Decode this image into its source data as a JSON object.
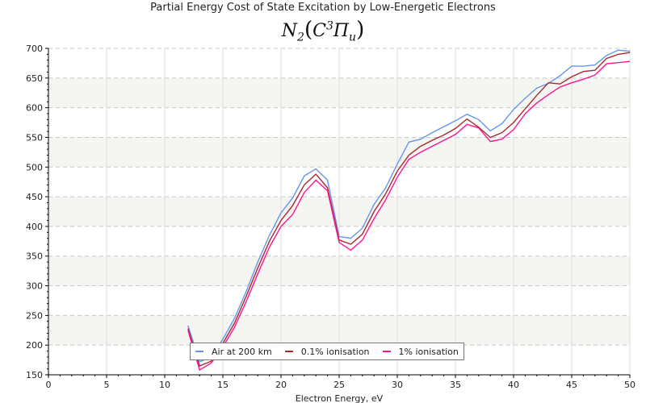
{
  "chart_data": {
    "type": "line",
    "title": "Partial Energy Cost of State Excitation by Low-Energetic Electrons",
    "subtitle": {
      "base": "N",
      "base_sub": "2",
      "state": "C",
      "state_sup": "3",
      "term": "Π",
      "term_sub": "u"
    },
    "xlabel": "Electron Energy, eV",
    "ylabel": "",
    "xlim": [
      0,
      50
    ],
    "ylim": [
      150,
      700
    ],
    "x_ticks": [
      0,
      5,
      10,
      15,
      20,
      25,
      30,
      35,
      40,
      45,
      50
    ],
    "y_ticks": [
      150,
      200,
      250,
      300,
      350,
      400,
      450,
      500,
      550,
      600,
      650,
      700
    ],
    "grid": true,
    "alternating_bands": true,
    "legend_position": "bottom-center",
    "x": [
      12,
      13,
      14,
      15,
      16,
      17,
      18,
      19,
      20,
      21,
      22,
      23,
      24,
      25,
      26,
      27,
      28,
      29,
      30,
      31,
      32,
      33,
      34,
      35,
      36,
      37,
      38,
      39,
      40,
      41,
      42,
      43,
      44,
      45,
      46,
      47,
      48,
      49,
      50
    ],
    "series": [
      {
        "name": "Air at 200 km",
        "color": "#6495ed",
        "values": [
          233,
          172,
          180,
          210,
          245,
          290,
          340,
          385,
          423,
          448,
          485,
          497,
          478,
          383,
          380,
          397,
          437,
          465,
          505,
          542,
          547,
          558,
          568,
          578,
          589,
          580,
          561,
          573,
          597,
          616,
          633,
          641,
          654,
          670,
          670,
          672,
          688,
          697,
          695
        ]
      },
      {
        "name": "0.1% ionisation",
        "color": "#a52a2a",
        "values": [
          228,
          165,
          173,
          203,
          237,
          282,
          330,
          375,
          410,
          435,
          470,
          488,
          465,
          377,
          370,
          387,
          425,
          455,
          493,
          520,
          535,
          545,
          554,
          565,
          581,
          567,
          550,
          558,
          575,
          598,
          621,
          642,
          640,
          652,
          661,
          663,
          683,
          690,
          693
        ]
      },
      {
        "name": "1% ionisation",
        "color": "#ff1493",
        "values": [
          225,
          158,
          170,
          197,
          230,
          273,
          320,
          365,
          400,
          420,
          457,
          478,
          460,
          373,
          360,
          377,
          413,
          445,
          483,
          513,
          525,
          535,
          545,
          555,
          572,
          566,
          543,
          547,
          563,
          590,
          608,
          622,
          635,
          642,
          648,
          655,
          674,
          676,
          678
        ]
      }
    ]
  }
}
